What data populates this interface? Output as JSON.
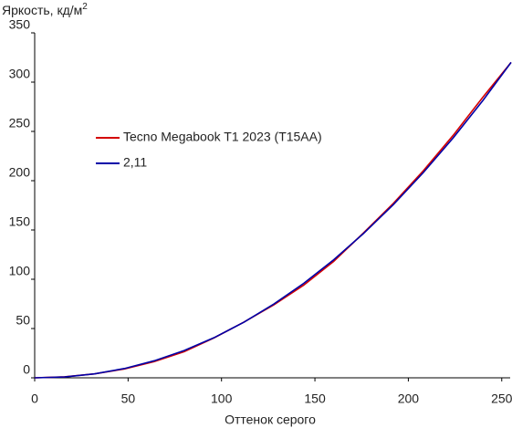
{
  "chart_data": {
    "type": "line",
    "y_label": "Яркость, кд/м",
    "y_label_sup": "2",
    "x_label": "Оттенок серого",
    "x": [
      0,
      16,
      32,
      48,
      64,
      80,
      96,
      112,
      128,
      144,
      160,
      176,
      192,
      208,
      224,
      240,
      255
    ],
    "series": [
      {
        "name": "Tecno Megabook T1 2023 (T15AA)",
        "color": "#d40000",
        "values": [
          0,
          1,
          4,
          9,
          16.5,
          26.5,
          40.5,
          56.5,
          74,
          94,
          118,
          147,
          177,
          210,
          246,
          285,
          320
        ]
      },
      {
        "name": "2,11",
        "color": "#0000a8",
        "values": [
          0,
          0.9,
          4,
          9.4,
          17.3,
          27.7,
          40.7,
          56.4,
          74.8,
          95.8,
          119.7,
          146.4,
          175.8,
          208.2,
          243.4,
          281.6,
          320
        ]
      }
    ],
    "xlim": [
      0,
      255
    ],
    "xticks": [
      0,
      50,
      100,
      150,
      200,
      250
    ],
    "ylim": [
      0,
      350
    ],
    "yticks": [
      0,
      50,
      100,
      150,
      200,
      250,
      300,
      350
    ],
    "grid": false
  }
}
